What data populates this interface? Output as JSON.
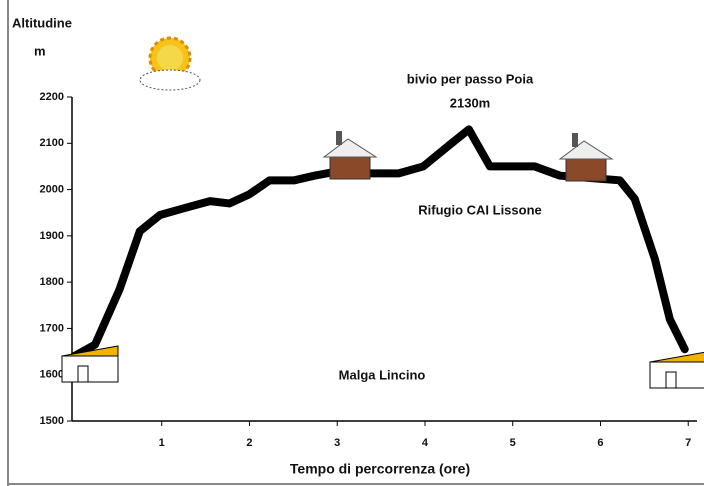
{
  "chart_data": {
    "type": "line",
    "y_label_line1": "Altitudine",
    "y_label_line2": "m",
    "x_label": "Tempo di percorrenza (ore)",
    "annotations": [
      "bivio per passo Poia",
      "2130m",
      "Rifugio CAI Lissone",
      "Malga Lincino"
    ],
    "x": [
      0,
      0.24,
      0.52,
      0.75,
      0.98,
      1.26,
      1.55,
      1.77,
      2.0,
      2.23,
      2.51,
      2.74,
      3.02,
      3.2,
      3.7,
      3.98,
      4.27,
      4.5,
      4.74,
      5.25,
      5.54,
      5.88,
      6.22,
      6.39,
      6.62,
      6.79,
      6.96
    ],
    "series": [
      {
        "name": "Altitudine",
        "color": "#000000",
        "values": [
          1640,
          1665,
          1785,
          1910,
          1945,
          1960,
          1975,
          1970,
          1990,
          2020,
          2020,
          2030,
          2040,
          2035,
          2035,
          2050,
          2095,
          2130,
          2050,
          2050,
          2030,
          2025,
          2020,
          1980,
          1850,
          1720,
          1655
        ]
      }
    ],
    "xlim": [
      0,
      7.1
    ],
    "xticks": [
      1,
      2,
      3,
      4,
      5,
      6,
      7
    ],
    "ylim": [
      1500,
      2200
    ],
    "yticks": [
      1500,
      1600,
      1700,
      1800,
      1900,
      2000,
      2100,
      2200
    ]
  }
}
